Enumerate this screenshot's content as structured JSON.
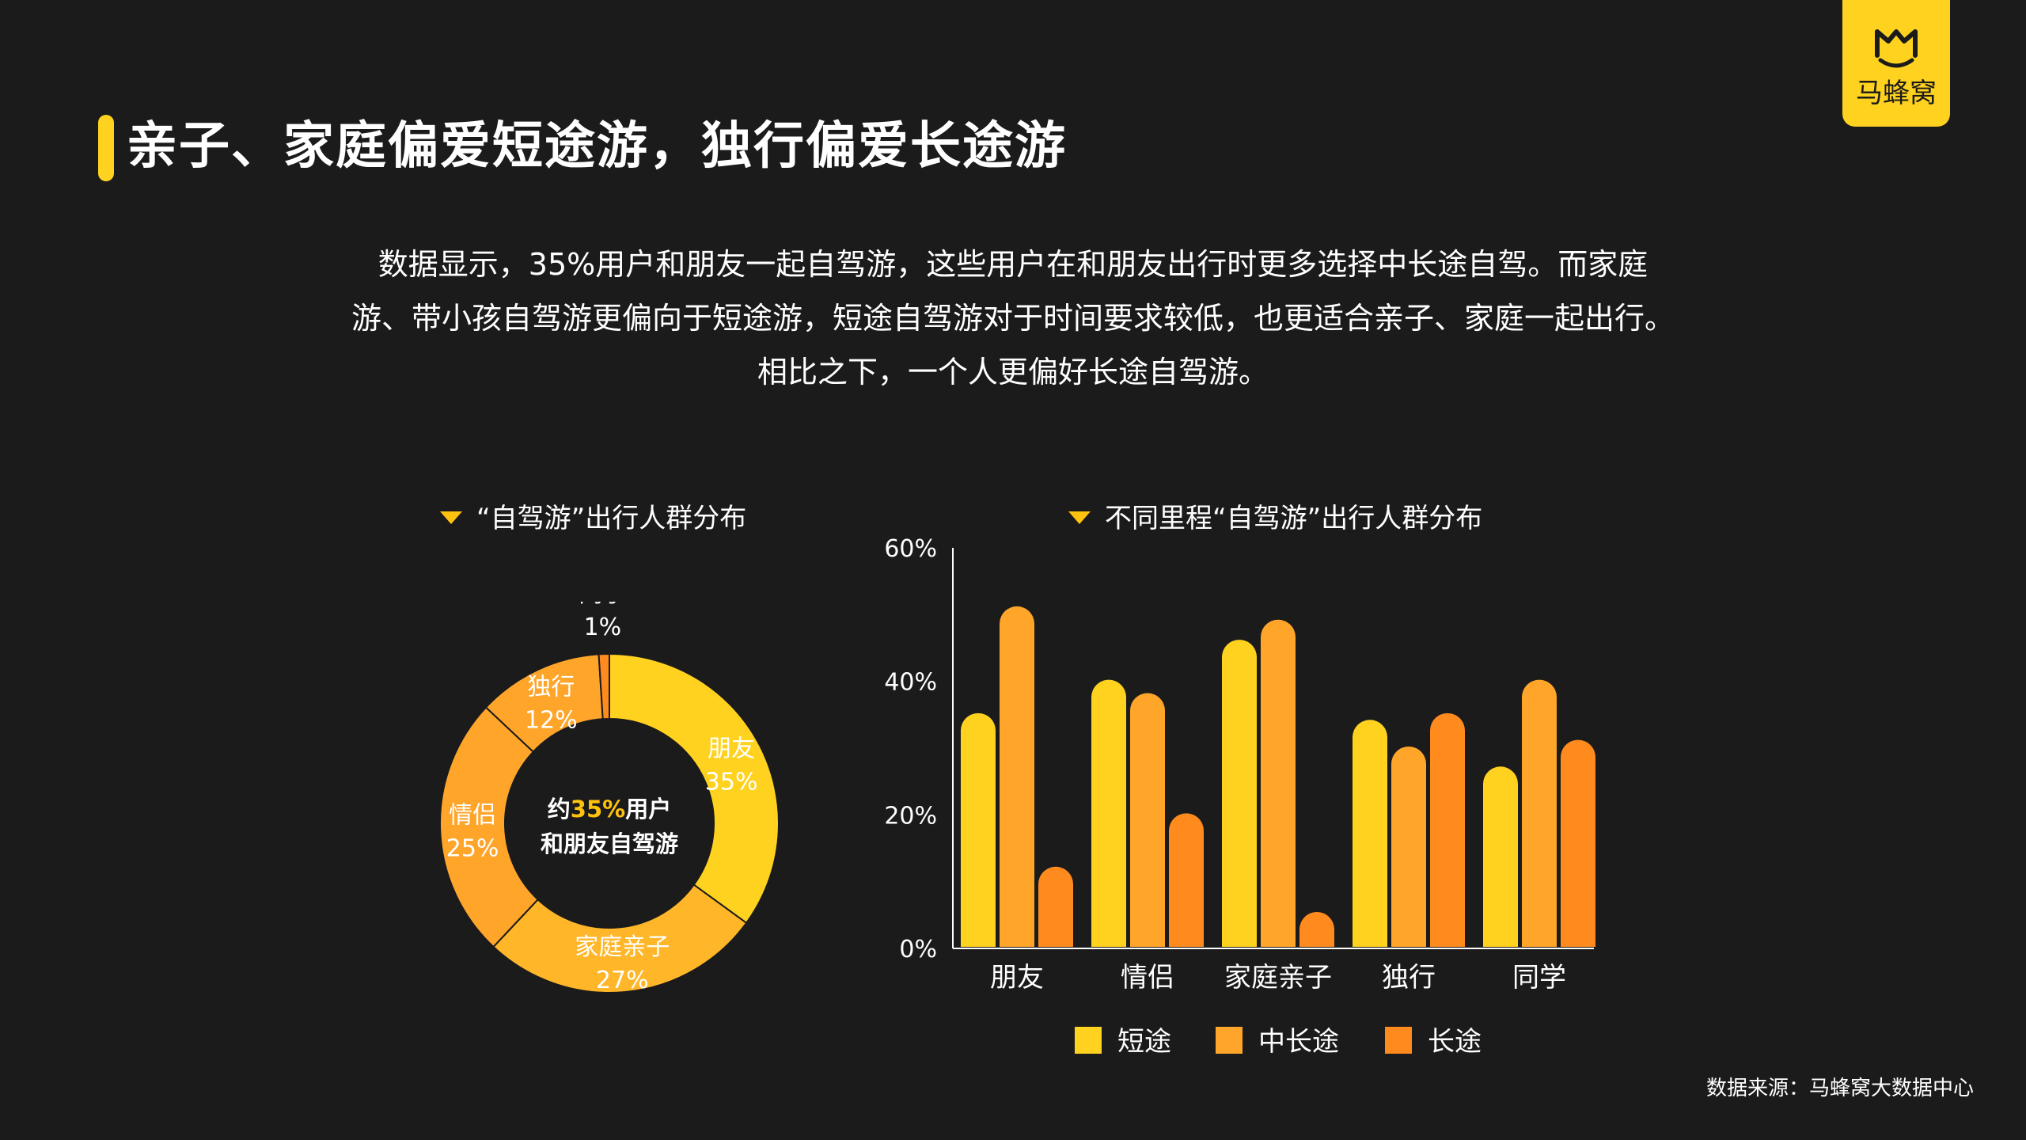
{
  "header": {
    "title": "亲子、家庭偏爱短途游，独行偏爱长途游"
  },
  "logo": {
    "text": "马蜂窝",
    "icon": "mafengwo-m-icon",
    "color": "#ffd21f"
  },
  "description": {
    "lines": [
      "数据显示，35%用户和朋友一起自驾游，这些用户在和朋友出行时更多选择中长途自驾。而家庭",
      "游、带小孩自驾游更偏向于短途游，短途自驾游对于时间要求较低，也更适合亲子、家庭一起出行。",
      "相比之下，一个人更偏好长途自驾游。"
    ]
  },
  "source": "数据来源：马蜂窝大数据中心",
  "chart_data": [
    {
      "type": "pie",
      "title": "“自驾游”出行人群分布",
      "center_text": {
        "prefix": "约",
        "highlight": "35%",
        "suffix": "用户",
        "line2": "和朋友自驾游"
      },
      "slices": [
        {
          "label": "朋友",
          "value": 35,
          "value_label": "35%",
          "color": "#ffd21f"
        },
        {
          "label": "家庭亲子",
          "value": 27,
          "value_label": "27%",
          "color": "#ffb629"
        },
        {
          "label": "情侣",
          "value": 25,
          "value_label": "25%",
          "color": "#ffa52a"
        },
        {
          "label": "独行",
          "value": 12,
          "value_label": "12%",
          "color": "#ffa52a"
        },
        {
          "label": "同学",
          "value": 1,
          "value_label": "1%",
          "color": "#ff8a1e"
        }
      ]
    },
    {
      "type": "bar",
      "title": "不同里程“自驾游”出行人群分布",
      "categories": [
        "朋友",
        "情侣",
        "家庭亲子",
        "独行",
        "同学"
      ],
      "series": [
        {
          "name": "短途",
          "values": [
            35,
            40,
            46,
            34,
            27
          ],
          "color": "#ffd21f"
        },
        {
          "name": "中长途",
          "values": [
            51,
            38,
            49,
            30,
            40
          ],
          "color": "#ffa52a"
        },
        {
          "name": "长途",
          "values": [
            12,
            20,
            3,
            35,
            31
          ],
          "color": "#ff8a1e"
        }
      ],
      "yticks": [
        "0%",
        "20%",
        "40%",
        "60%"
      ],
      "ylim": [
        0,
        60
      ],
      "legend_position": "bottom"
    }
  ]
}
